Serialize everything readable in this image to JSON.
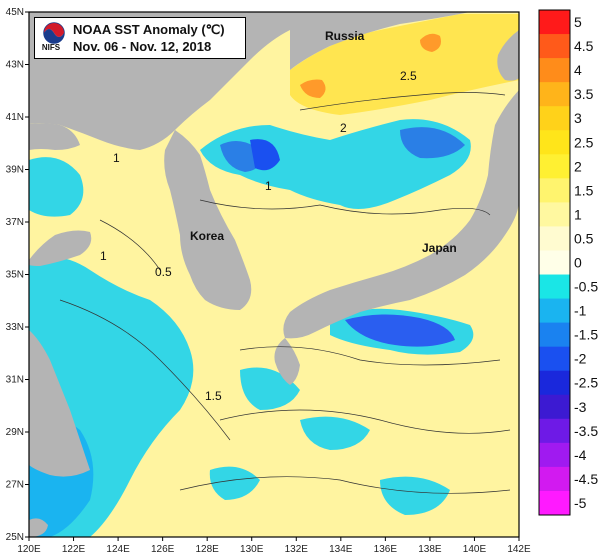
{
  "title": {
    "line1": "NOAA SST Anomaly (℃)",
    "line2": "Nov. 06 - Nov. 12, 2018",
    "logo_text": "NIFS"
  },
  "axes": {
    "x_ticks": [
      "120E",
      "122E",
      "124E",
      "126E",
      "128E",
      "130E",
      "132E",
      "134E",
      "136E",
      "138E",
      "140E",
      "142E"
    ],
    "y_ticks": [
      "45N",
      "43N",
      "41N",
      "39N",
      "37N",
      "35N",
      "33N",
      "31N",
      "29N",
      "27N",
      "25N"
    ]
  },
  "places": {
    "russia": "Russia",
    "korea": "Korea",
    "japan": "Japan"
  },
  "contour_labels": [
    "1",
    "1",
    "1",
    "2",
    "2.5",
    "1.5",
    "0.5"
  ],
  "legend": {
    "labels": [
      "5",
      "4.5",
      "4",
      "3.5",
      "3",
      "2.5",
      "2",
      "1.5",
      "1",
      "0.5",
      "0",
      "-0.5",
      "-1",
      "-1.5",
      "-2",
      "-2.5",
      "-3",
      "-3.5",
      "-4",
      "-4.5",
      "-5"
    ],
    "colors": [
      "#ff1a1a",
      "#ff5a1a",
      "#ff8c1a",
      "#ffb41a",
      "#ffd21a",
      "#ffe51a",
      "#fff032",
      "#fff46e",
      "#fff8a0",
      "#fffbd0",
      "#ffffe8",
      "#1ae6e6",
      "#1ab4f0",
      "#1a82f0",
      "#1a50f0",
      "#1a28dc",
      "#3c1ad2",
      "#6e1ae6",
      "#a01af0",
      "#d21af0",
      "#ff1aff"
    ]
  },
  "colors": {
    "land": "#b4b4b4",
    "warm_sea": "#fff4a0",
    "warm_sea_strong": "#ffe550",
    "cool_sea": "#33d6e6",
    "cool_sea_strong": "#2a7fe6"
  }
}
